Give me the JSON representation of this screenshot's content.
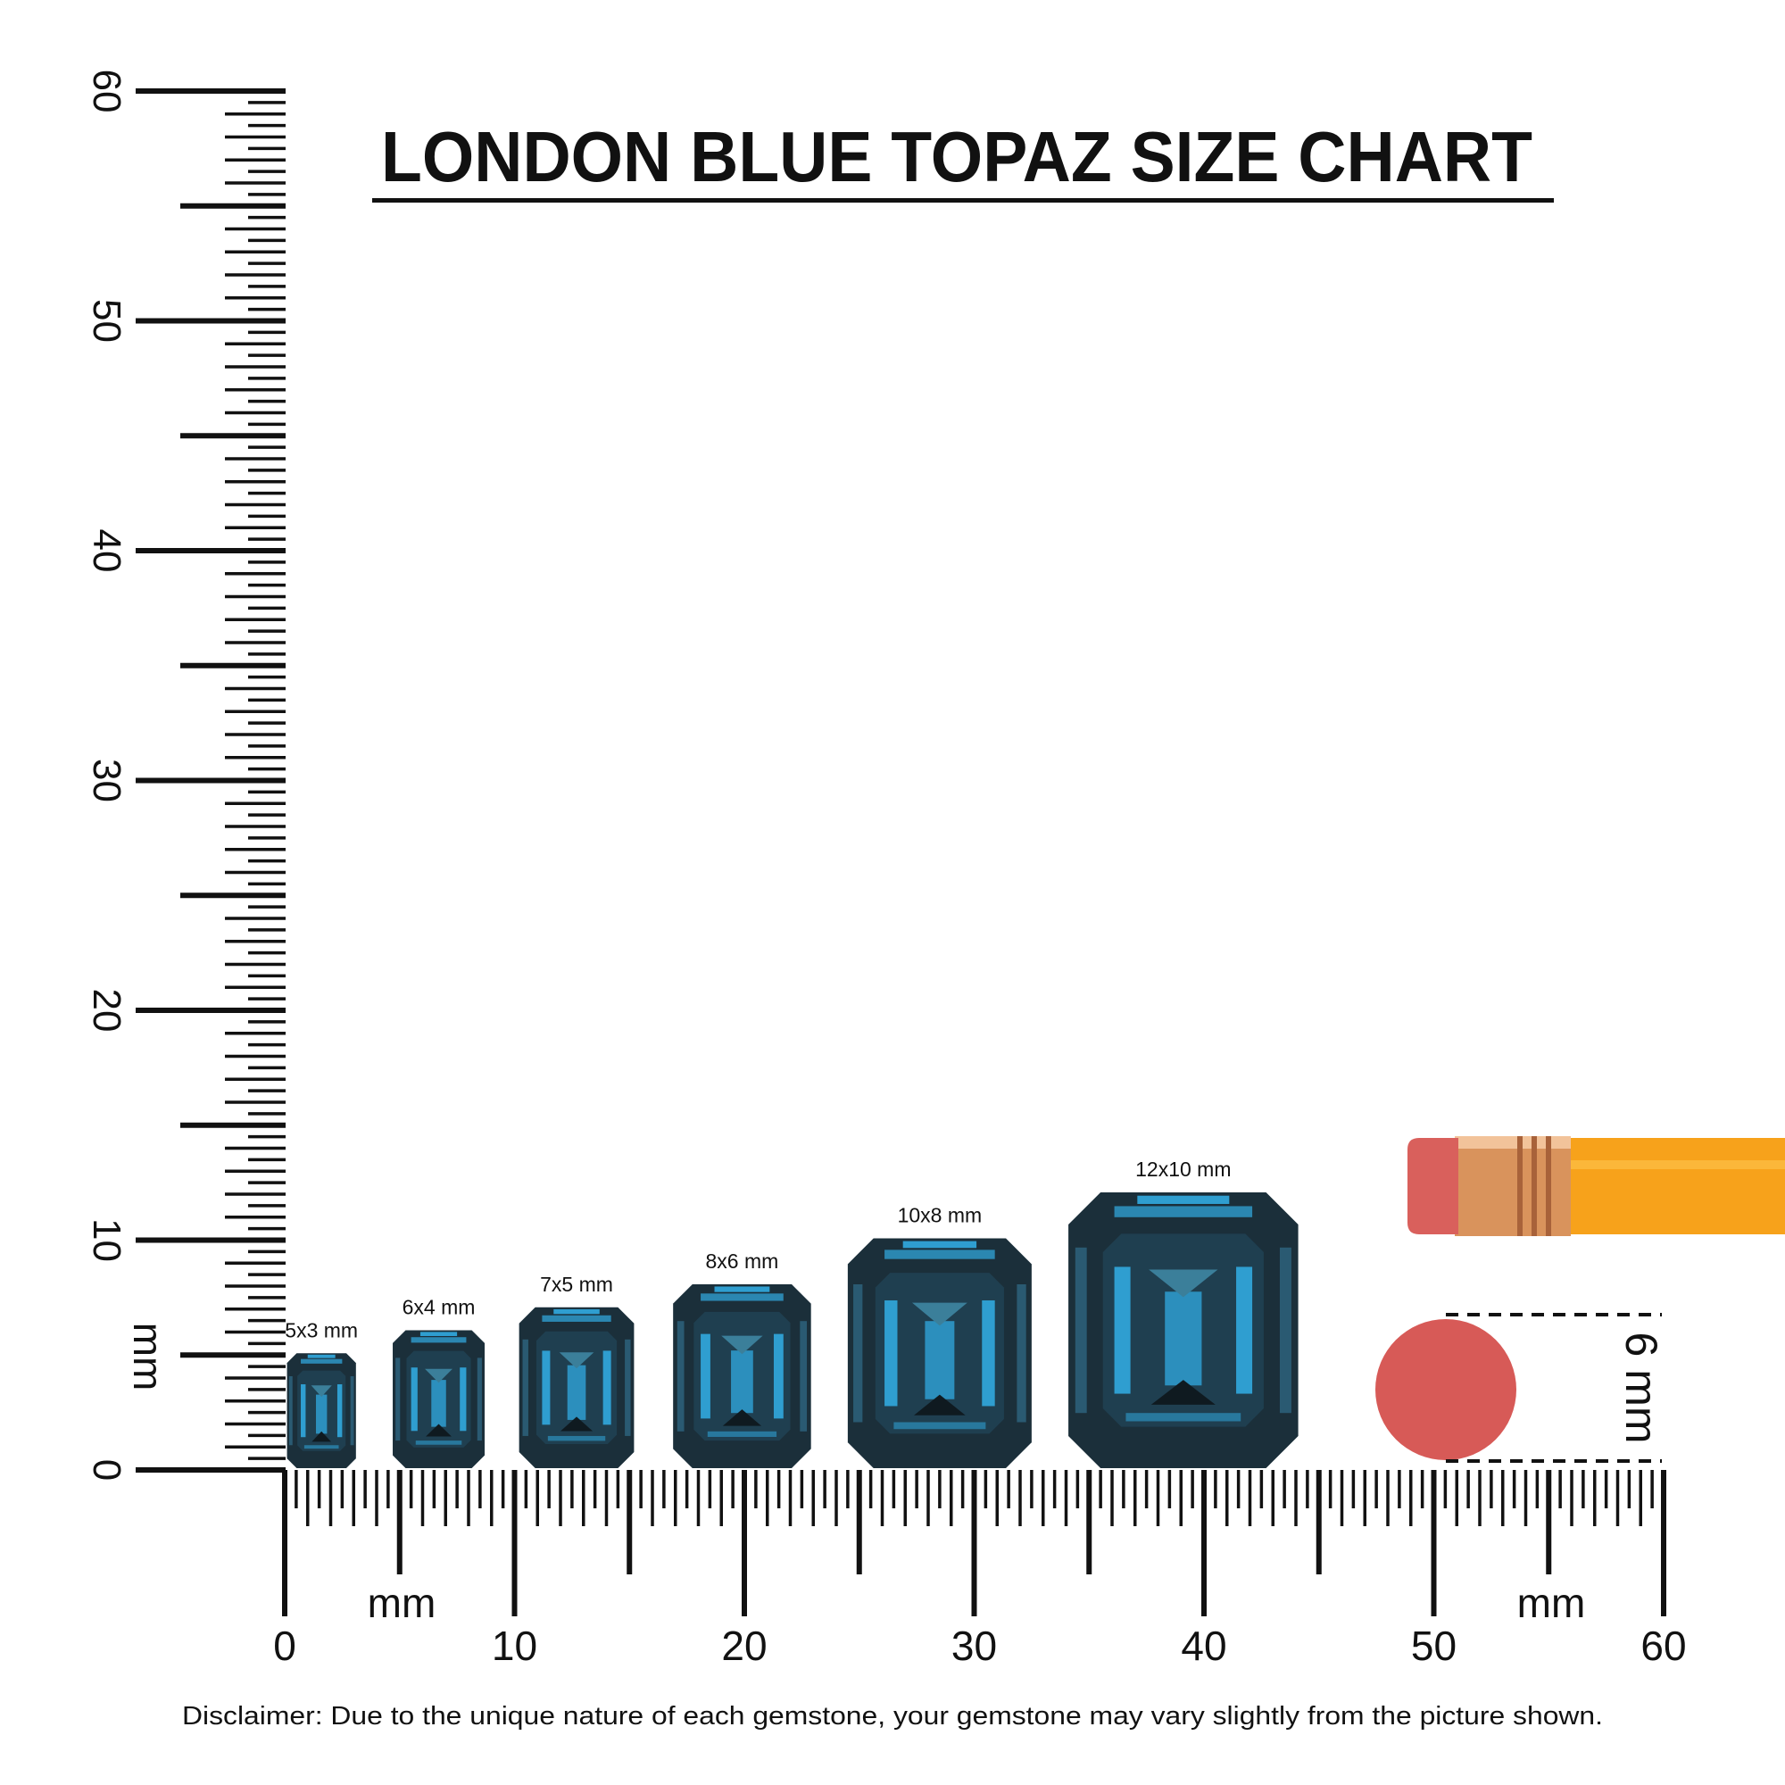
{
  "chart_data": {
    "type": "size-chart",
    "title": "LONDON BLUE TOPAZ SIZE CHART",
    "x_axis": {
      "unit_label": "mm",
      "range": [
        0,
        60
      ],
      "tick_labels": [
        "0",
        "10",
        "20",
        "30",
        "40",
        "50",
        "60"
      ]
    },
    "y_axis": {
      "unit_label": "mm",
      "range": [
        0,
        60
      ],
      "tick_labels": [
        "0",
        "10",
        "20",
        "30",
        "40",
        "50",
        "60"
      ]
    },
    "gems": [
      {
        "label": "5x3 mm",
        "length_mm": 5,
        "width_mm": 3
      },
      {
        "label": "6x4 mm",
        "length_mm": 6,
        "width_mm": 4
      },
      {
        "label": "7x5 mm",
        "length_mm": 7,
        "width_mm": 5
      },
      {
        "label": "8x6 mm",
        "length_mm": 8,
        "width_mm": 6
      },
      {
        "label": "10x8 mm",
        "length_mm": 10,
        "width_mm": 8
      },
      {
        "label": "12x10 mm",
        "length_mm": 12,
        "width_mm": 10
      }
    ],
    "reference": {
      "object": "pencil eraser",
      "label": "6 mm",
      "diameter_mm": 6
    },
    "colors": {
      "gem_dark": "#1b2f3a",
      "gem_mid": "#2a5a72",
      "gem_light": "#2f9ed0",
      "eraser": "#d75a57",
      "pencil": "#f7a21b",
      "ferrule": "#d9935c"
    }
  },
  "disclaimer": "Disclaimer: Due to the unique nature of each gemstone, your gemstone may vary slightly from the picture shown."
}
